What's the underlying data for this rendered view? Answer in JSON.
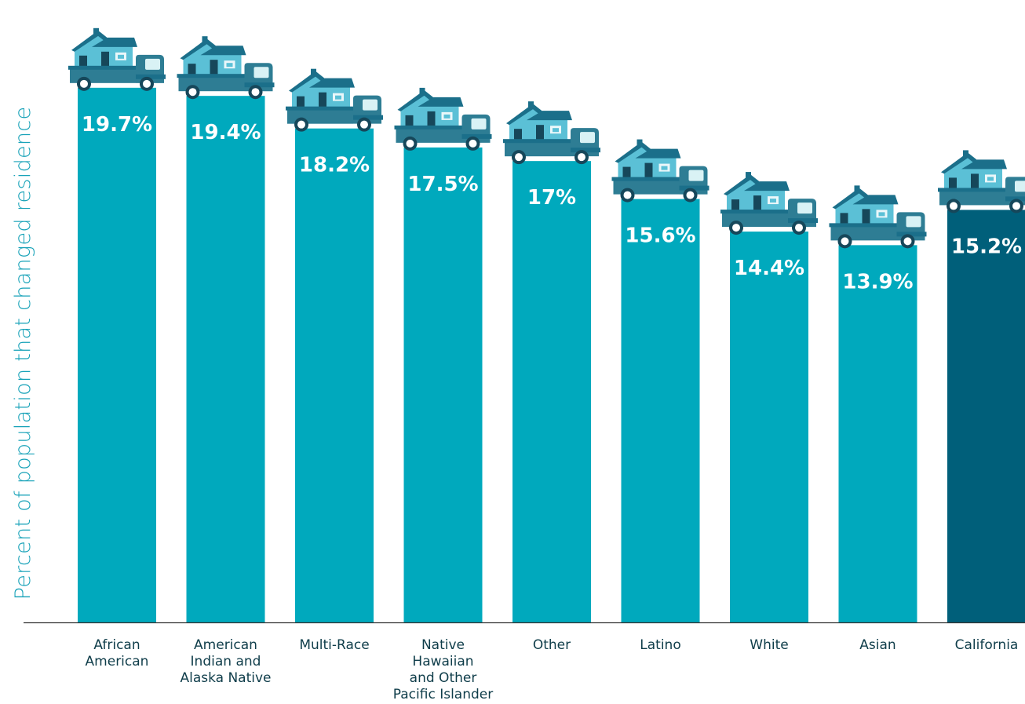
{
  "chart_data": {
    "type": "bar",
    "ylabel": "Percent of population that changed residence",
    "xlabel": "",
    "title": "",
    "ylim": [
      0,
      22.5
    ],
    "grid": false,
    "legend": "none",
    "categories": [
      "African American",
      "American Indian and Alaska Native",
      "Multi-Race",
      "Native Hawaiian and Other Pacific Islander",
      "Other",
      "Latino",
      "White",
      "Asian",
      "California"
    ],
    "category_lines": [
      [
        "African",
        "American"
      ],
      [
        "American",
        "Indian and",
        "Alaska Native"
      ],
      [
        "Multi-Race"
      ],
      [
        "Native",
        "Hawaiian",
        "and Other",
        "Pacific Islander"
      ],
      [
        "Other"
      ],
      [
        "Latino"
      ],
      [
        "White"
      ],
      [
        "Asian"
      ],
      [
        "California"
      ]
    ],
    "values": [
      19.7,
      19.4,
      18.2,
      17.5,
      17,
      15.6,
      14.4,
      13.9,
      15.2
    ],
    "value_labels": [
      "19.7%",
      "19.4%",
      "18.2%",
      "17.5%",
      "17%",
      "15.6%",
      "14.4%",
      "13.9%",
      "15.2%"
    ],
    "highlight_category": "California",
    "colors": {
      "bar": "#00a9bd",
      "highlight_bar": "#005f7a",
      "axis_label": "#17a2b8",
      "category_text": "#0f3d4a",
      "value_text": "#ffffff",
      "truck_body": "#2e7d94",
      "truck_cab_window": "#d9f2f5",
      "house_light": "#5bc0d6",
      "house_roof": "#1b6f8a",
      "house_dark": "#16475a",
      "house_window": "#eaf7fa",
      "wheel": "#ffffff",
      "baseline": "#333333"
    },
    "bar_icon": "moving-truck-with-house-icon"
  }
}
